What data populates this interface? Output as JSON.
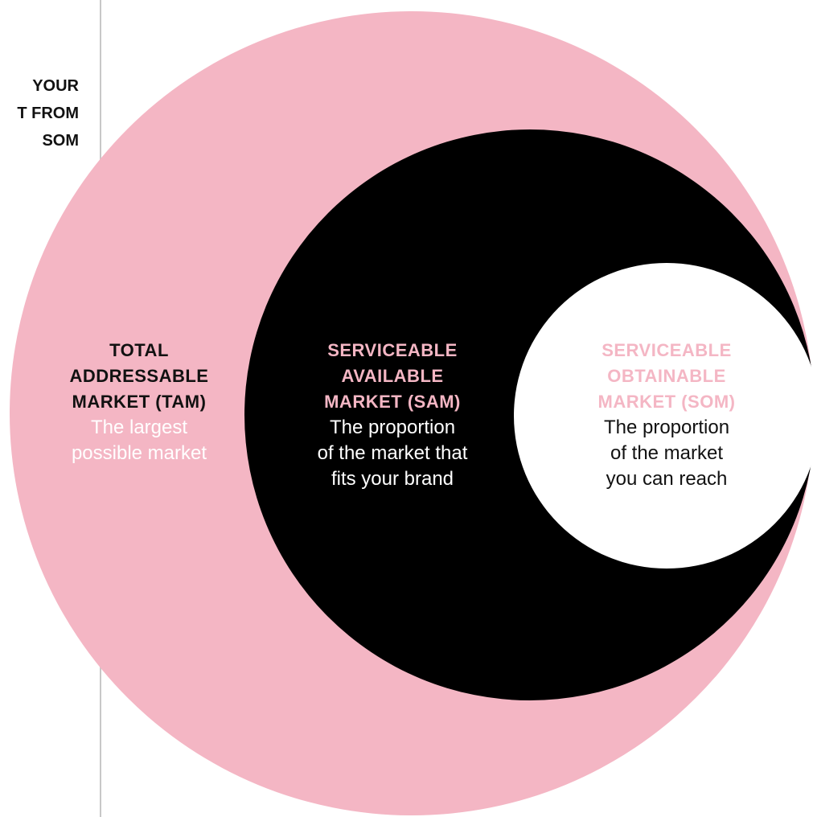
{
  "colors": {
    "pink": "#f4b6c4",
    "black": "#000000",
    "white": "#ffffff",
    "dark_text": "#111111",
    "divider": "#c8c8c8"
  },
  "side_heading": {
    "lines": [
      "YOUR",
      "T FROM",
      "SOM"
    ]
  },
  "diagram": {
    "tam": {
      "title_lines": [
        "TOTAL",
        "ADDRESSABLE",
        "MARKET (TAM)"
      ],
      "desc_lines": [
        "The largest",
        "possible market"
      ]
    },
    "sam": {
      "title_lines": [
        "SERVICEABLE",
        "AVAILABLE",
        "MARKET (SAM)"
      ],
      "desc_lines": [
        "The proportion",
        "of the market that",
        "fits your brand"
      ]
    },
    "som": {
      "title_lines": [
        "SERVICEABLE",
        "OBTAINABLE",
        "MARKET (SOM)"
      ],
      "desc_lines": [
        "The proportion",
        "of the market",
        "you can reach"
      ]
    }
  }
}
